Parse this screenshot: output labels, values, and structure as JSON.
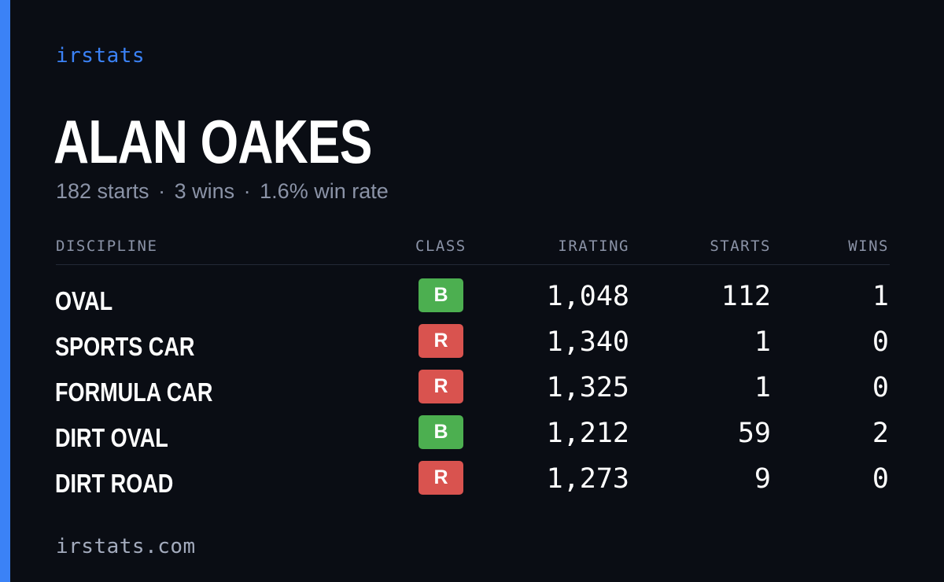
{
  "brand": "irstats",
  "driver": {
    "name": "ALAN OAKES",
    "starts_text": "182 starts",
    "wins_text": "3 wins",
    "win_rate_text": "1.6% win rate",
    "separator": "·"
  },
  "table": {
    "headers": {
      "discipline": "DISCIPLINE",
      "class": "CLASS",
      "irating": "IRATING",
      "starts": "STARTS",
      "wins": "WINS"
    },
    "rows": [
      {
        "discipline": "OVAL",
        "class": "B",
        "irating": "1,048",
        "starts": "112",
        "wins": "1"
      },
      {
        "discipline": "SPORTS CAR",
        "class": "R",
        "irating": "1,340",
        "starts": "1",
        "wins": "0"
      },
      {
        "discipline": "FORMULA CAR",
        "class": "R",
        "irating": "1,325",
        "starts": "1",
        "wins": "0"
      },
      {
        "discipline": "DIRT OVAL",
        "class": "B",
        "irating": "1,212",
        "starts": "59",
        "wins": "2"
      },
      {
        "discipline": "DIRT ROAD",
        "class": "R",
        "irating": "1,273",
        "starts": "9",
        "wins": "0"
      }
    ]
  },
  "class_colors": {
    "B": "#4caf50",
    "R": "#d9534f"
  },
  "accent_color": "#3b82f6",
  "footer": "irstats.com"
}
